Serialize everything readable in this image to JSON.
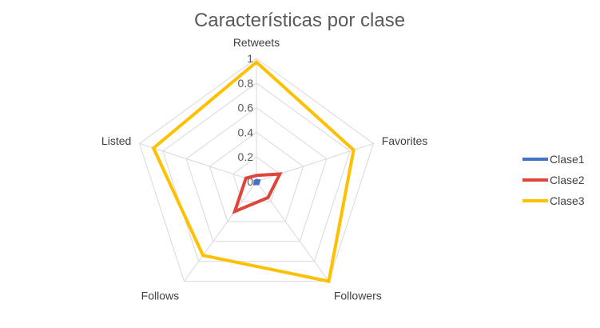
{
  "chart_data": {
    "type": "radar",
    "title": "Características por clase",
    "axes": [
      "Retweets",
      "Favorites",
      "Followers",
      "Follows",
      "Listed"
    ],
    "rlim": [
      0,
      1
    ],
    "ticks": [
      "0",
      "0.2",
      "0.4",
      "0.6",
      "0.8",
      "1"
    ],
    "tick_values": [
      0,
      0.2,
      0.4,
      0.6,
      0.8,
      1
    ],
    "grid": true,
    "legend_position": "right",
    "series": [
      {
        "name": "Clase1",
        "color": "#4472C4",
        "values": [
          0.01,
          0.02,
          0.02,
          0.02,
          0.01
        ]
      },
      {
        "name": "Clase2",
        "color": "#E0453A",
        "values": [
          0.05,
          0.2,
          0.16,
          0.3,
          0.09
        ]
      },
      {
        "name": "Clase3",
        "color": "#FFC000",
        "values": [
          0.97,
          0.83,
          1.0,
          0.74,
          0.88
        ]
      }
    ]
  }
}
